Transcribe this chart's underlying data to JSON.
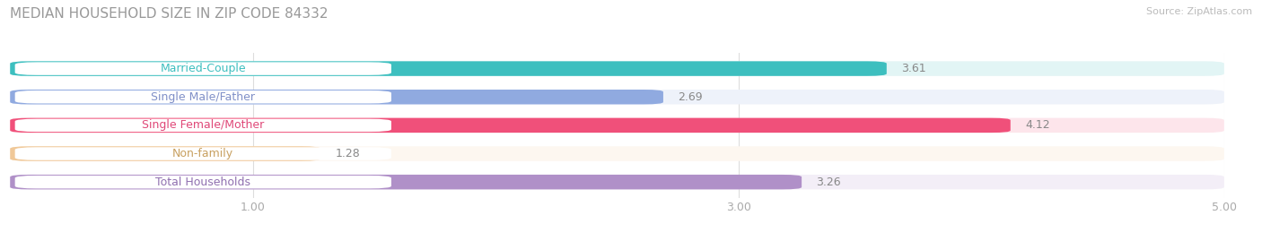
{
  "title": "MEDIAN HOUSEHOLD SIZE IN ZIP CODE 84332",
  "source": "Source: ZipAtlas.com",
  "categories": [
    "Married-Couple",
    "Single Male/Father",
    "Single Female/Mother",
    "Non-family",
    "Total Households"
  ],
  "values": [
    3.61,
    2.69,
    4.12,
    1.28,
    3.26
  ],
  "bar_colors": [
    "#3dbfbf",
    "#90aae0",
    "#f0507a",
    "#f0c898",
    "#b090c8"
  ],
  "label_text_colors": [
    "#3dbfbf",
    "#8090c8",
    "#e04878",
    "#c8a060",
    "#9070b0"
  ],
  "xlim_data": [
    0,
    5.0
  ],
  "xlim_display": [
    0.0,
    5.0
  ],
  "xticks": [
    1.0,
    3.0,
    5.0
  ],
  "xtick_labels": [
    "1.00",
    "3.00",
    "5.00"
  ],
  "bar_height": 0.52,
  "label_fontsize": 9.0,
  "value_fontsize": 9.0,
  "title_fontsize": 11,
  "source_fontsize": 8,
  "background_color": "#ffffff",
  "pill_color": "#ffffff",
  "grid_color": "#dddddd",
  "value_color": "#888888",
  "title_color": "#999999"
}
